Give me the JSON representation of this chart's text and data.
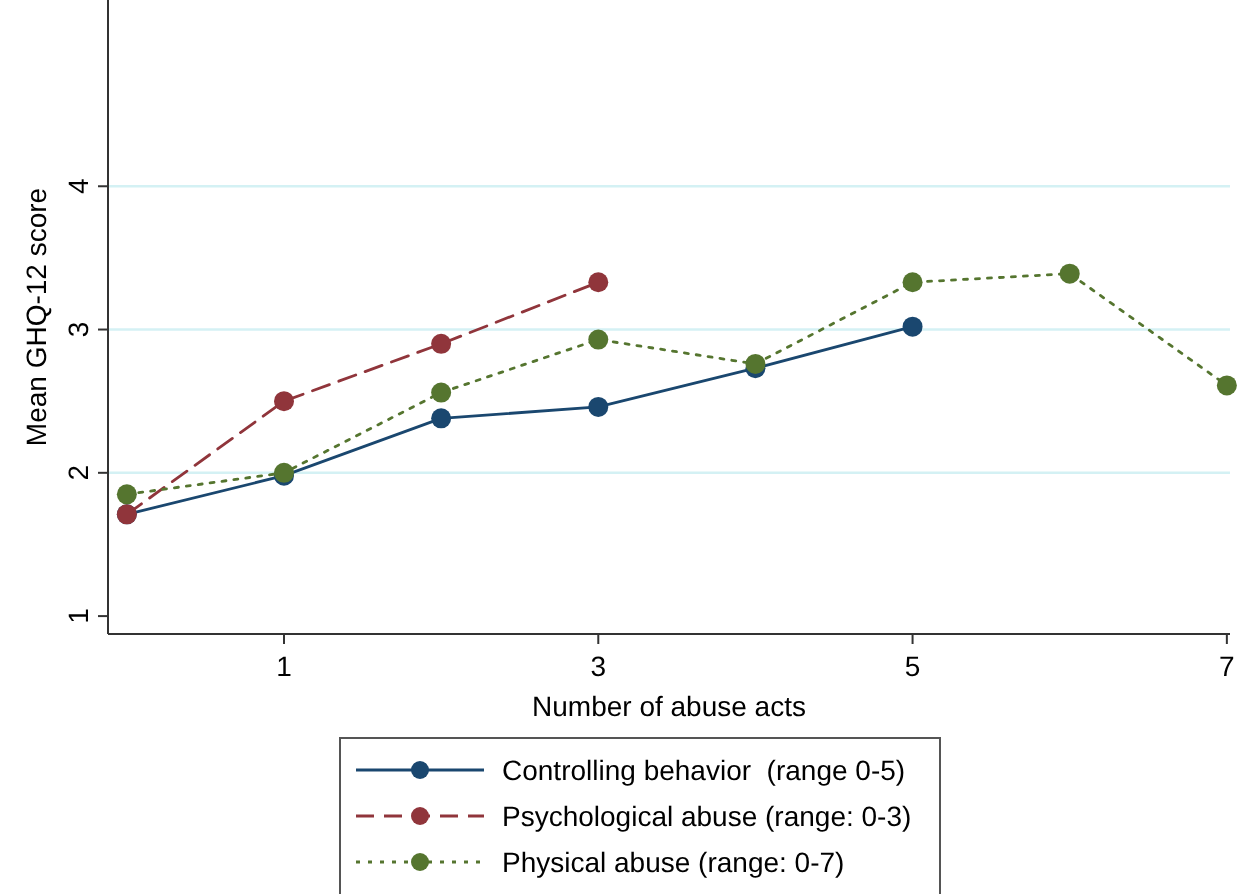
{
  "chart_data": {
    "type": "line",
    "xlabel": "Number of abuse acts",
    "ylabel": "Mean GHQ-12 score",
    "xlim": [
      -0.12,
      7.02
    ],
    "xticks": [
      1,
      3,
      5,
      7
    ],
    "ylim": [
      0.875,
      5.3
    ],
    "yticks": [
      1,
      2,
      3,
      4
    ],
    "grid": "y",
    "legend": "bottom",
    "marker": "circle",
    "series": [
      {
        "name": "Controlling behavior  (range 0-5)",
        "color": "#1a476f",
        "line_style": "solid",
        "x": [
          0,
          1,
          2,
          3,
          4,
          5
        ],
        "values": [
          1.71,
          1.98,
          2.38,
          2.46,
          2.73,
          3.02
        ]
      },
      {
        "name": "Psychological abuse (range: 0-3)",
        "color": "#90353b",
        "line_style": "dashed",
        "x": [
          0,
          1,
          2,
          3
        ],
        "values": [
          1.71,
          2.5,
          2.9,
          3.33
        ]
      },
      {
        "name": "Physical abuse (range: 0-7)",
        "color": "#55752f",
        "line_style": "dotted",
        "x": [
          0,
          1,
          2,
          3,
          4,
          5,
          6,
          7
        ],
        "values": [
          1.85,
          2.0,
          2.56,
          2.93,
          2.76,
          3.33,
          3.39,
          2.61
        ]
      }
    ]
  }
}
